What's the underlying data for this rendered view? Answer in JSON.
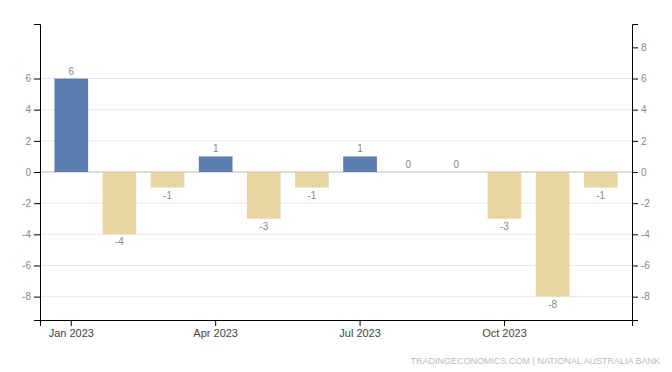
{
  "chart_data": {
    "type": "bar",
    "categories": [
      "Jan 2023",
      null,
      null,
      "Apr 2023",
      null,
      null,
      "Jul 2023",
      null,
      null,
      "Oct 2023",
      null,
      null
    ],
    "values": [
      6,
      -4,
      -1,
      1,
      -3,
      -1,
      1,
      0,
      0,
      -3,
      -8,
      -1
    ],
    "colors": [
      "#5b7db1",
      "#e8d5a3",
      "#e8d5a3",
      "#5b7db1",
      "#e8d5a3",
      "#e8d5a3",
      "#5b7db1",
      "#5b7db1",
      "#5b7db1",
      "#e8d5a3",
      "#e8d5a3",
      "#e8d5a3"
    ],
    "ylim": [
      -9.5,
      9.5
    ],
    "yticks": [
      6,
      4,
      2,
      0,
      -2,
      -4,
      -6,
      -8
    ],
    "y2lim": [
      -9.5,
      9.5
    ],
    "y2ticks": [
      8,
      6,
      4,
      2,
      0,
      -2,
      -4,
      -6,
      -8
    ],
    "grid": true,
    "data_labels": true,
    "annotations": [
      "TRADINGECONOMICS.COM | NATIONAL AUSTRALIA BANK"
    ]
  }
}
